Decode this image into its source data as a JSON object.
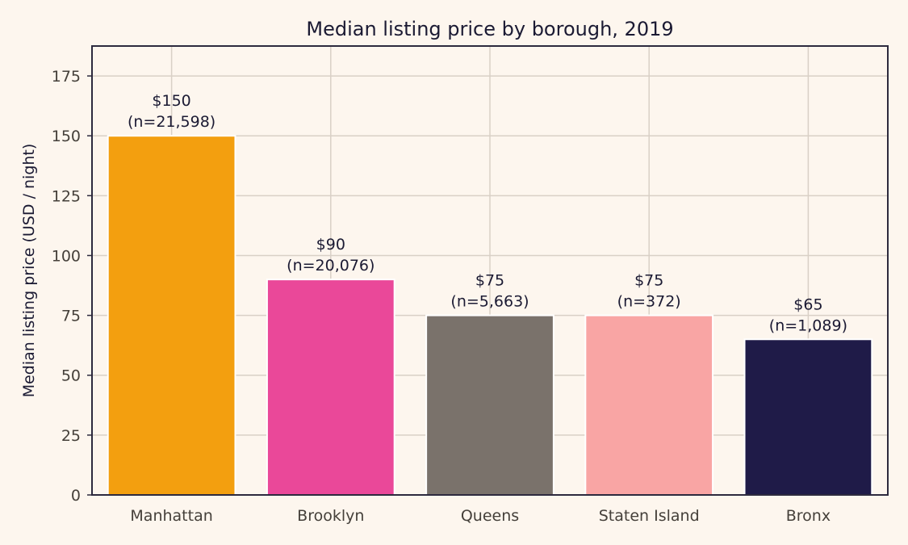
{
  "chart_data": {
    "type": "bar",
    "title": "Median listing price by borough, 2019",
    "xlabel": "",
    "ylabel": "Median listing price (USD / night)",
    "categories": [
      "Manhattan",
      "Brooklyn",
      "Queens",
      "Staten Island",
      "Bronx"
    ],
    "values": [
      150,
      90,
      75,
      75,
      65
    ],
    "counts": [
      "21,598",
      "20,076",
      "5,663",
      "372",
      "1,089"
    ],
    "data_labels": [
      {
        "price": "$150",
        "count": "(n=21,598)"
      },
      {
        "price": "$90",
        "count": "(n=20,076)"
      },
      {
        "price": "$75",
        "count": "(n=5,663)"
      },
      {
        "price": "$75",
        "count": "(n=372)"
      },
      {
        "price": "$65",
        "count": "(n=1,089)"
      }
    ],
    "colors": [
      "#f39f0f",
      "#ea4899",
      "#7a726b",
      "#f9a5a4",
      "#1f1b48"
    ],
    "ylim": [
      0,
      187.5
    ],
    "yticks": [
      0,
      25,
      50,
      75,
      100,
      125,
      150,
      175
    ],
    "grid": true,
    "legend": "none"
  }
}
